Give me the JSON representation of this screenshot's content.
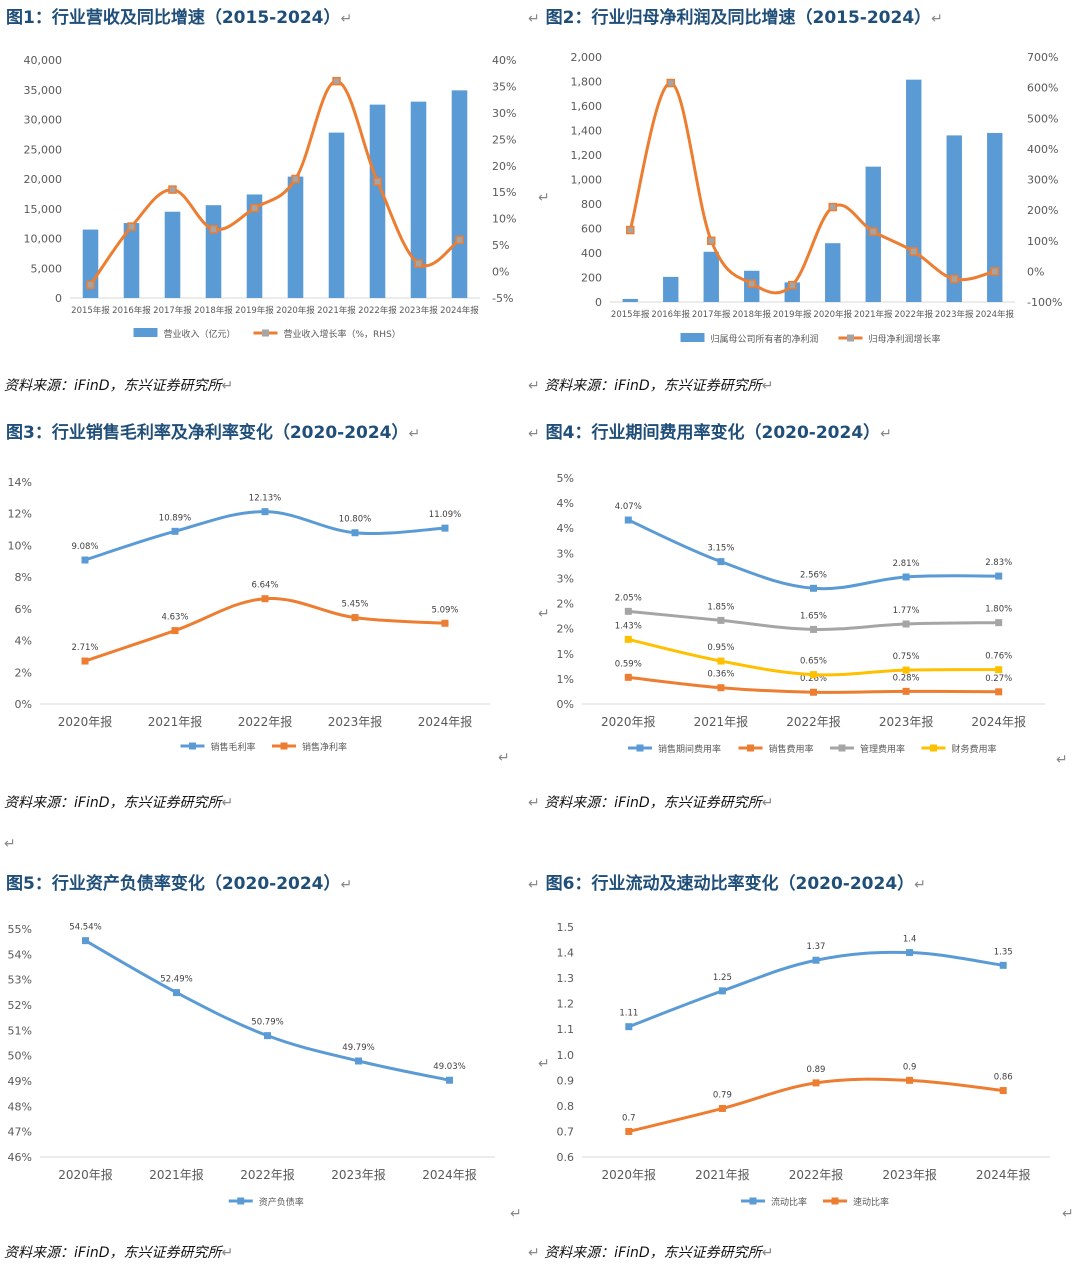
{
  "figures": [
    {
      "title": "图1：行业营收及同比增速（2015-2024）",
      "source": "资料来源：iFinD，东兴证券研究所"
    },
    {
      "title": "图2：行业归母净利润及同比增速（2015-2024）",
      "source": "资料来源：iFinD，东兴证券研究所"
    },
    {
      "title": "图3：行业销售毛利率及净利率变化（2020-2024）",
      "source": "资料来源：iFinD，东兴证券研究所"
    },
    {
      "title": "图4：行业期间费用率变化（2020-2024）",
      "source": "资料来源：iFinD，东兴证券研究所"
    },
    {
      "title": "图5：行业资产负债率变化（2020-2024）",
      "source": "资料来源：iFinD，东兴证券研究所"
    },
    {
      "title": "图6：行业流动及速动比率变化（2020-2024）",
      "source": "资料来源：iFinD，东兴证券研究所"
    }
  ],
  "return_mark": "↵",
  "chart_data": [
    {
      "type": "bar",
      "categories": [
        "2015年报",
        "2016年报",
        "2017年报",
        "2018年报",
        "2019年报",
        "2020年报",
        "2021年报",
        "2022年报",
        "2023年报",
        "2024年报"
      ],
      "series": [
        {
          "name": "营业收入（亿元）",
          "type": "bar",
          "axis": "left",
          "color": "#5b9bd5",
          "values": [
            11500,
            12600,
            14500,
            15600,
            17400,
            20400,
            27800,
            32500,
            33000,
            34900
          ]
        },
        {
          "name": "营业收入增长率（%，RHS）",
          "type": "line",
          "axis": "right",
          "color": "#ed7d31",
          "values": [
            -2.5,
            8.5,
            15.5,
            8.0,
            12.0,
            17.5,
            36.0,
            17.0,
            1.5,
            6.0
          ]
        }
      ],
      "ylim": [
        0,
        40000
      ],
      "yticks": [
        "0",
        "5,000",
        "10,000",
        "15,000",
        "20,000",
        "25,000",
        "30,000",
        "35,000",
        "40,000"
      ],
      "y2lim": [
        -5,
        40
      ],
      "y2ticks": [
        "-5%",
        "0%",
        "5%",
        "10%",
        "15%",
        "20%",
        "25%",
        "30%",
        "35%",
        "40%"
      ],
      "legend": "bottom",
      "grid": false
    },
    {
      "type": "bar",
      "categories": [
        "2015年报",
        "2016年报",
        "2017年报",
        "2018年报",
        "2019年报",
        "2020年报",
        "2021年报",
        "2022年报",
        "2023年报",
        "2024年报"
      ],
      "series": [
        {
          "name": "归属母公司所有者的净利润",
          "type": "bar",
          "axis": "left",
          "color": "#5b9bd5",
          "values": [
            25,
            205,
            410,
            255,
            160,
            480,
            1105,
            1815,
            1360,
            1380
          ]
        },
        {
          "name": "归母净利润增长率",
          "type": "line",
          "axis": "right",
          "color": "#ed7d31",
          "values": [
            135,
            615,
            100,
            -40,
            -45,
            210,
            130,
            65,
            -25,
            0
          ]
        }
      ],
      "ylim": [
        0,
        2000
      ],
      "yticks": [
        "0",
        "200",
        "400",
        "600",
        "800",
        "1,000",
        "1,200",
        "1,400",
        "1,600",
        "1,800",
        "2,000"
      ],
      "y2lim": [
        -100,
        700
      ],
      "y2ticks": [
        "-100%",
        "0%",
        "100%",
        "200%",
        "300%",
        "400%",
        "500%",
        "600%",
        "700%"
      ],
      "legend": "bottom",
      "grid": false
    },
    {
      "type": "line",
      "categories": [
        "2020年报",
        "2021年报",
        "2022年报",
        "2023年报",
        "2024年报"
      ],
      "series": [
        {
          "name": "销售毛利率",
          "color": "#5b9bd5",
          "values": [
            9.08,
            10.89,
            12.13,
            10.8,
            11.09
          ],
          "labels": [
            "9.08%",
            "10.89%",
            "12.13%",
            "10.80%",
            "11.09%"
          ]
        },
        {
          "name": "销售净利率",
          "color": "#ed7d31",
          "values": [
            2.71,
            4.63,
            6.64,
            5.45,
            5.09
          ],
          "labels": [
            "2.71%",
            "4.63%",
            "6.64%",
            "5.45%",
            "5.09%"
          ]
        }
      ],
      "ylim": [
        0,
        14
      ],
      "yticks": [
        "0%",
        "2%",
        "4%",
        "6%",
        "8%",
        "10%",
        "12%",
        "14%"
      ],
      "legend": "bottom",
      "grid": false
    },
    {
      "type": "line",
      "categories": [
        "2020年报",
        "2021年报",
        "2022年报",
        "2023年报",
        "2024年报"
      ],
      "series": [
        {
          "name": "销售期间费用率",
          "color": "#5b9bd5",
          "values": [
            4.07,
            3.15,
            2.56,
            2.81,
            2.83
          ],
          "labels": [
            "4.07%",
            "3.15%",
            "2.56%",
            "2.81%",
            "2.83%"
          ]
        },
        {
          "name": "销售费用率",
          "color": "#ed7d31",
          "values": [
            0.59,
            0.36,
            0.26,
            0.28,
            0.27
          ],
          "labels": [
            "0.59%",
            "0.36%",
            "0.26%",
            "0.28%",
            "0.27%"
          ]
        },
        {
          "name": "管理费用率",
          "color": "#a5a5a5",
          "values": [
            2.05,
            1.85,
            1.65,
            1.77,
            1.8
          ],
          "labels": [
            "2.05%",
            "1.85%",
            "1.65%",
            "1.77%",
            "1.80%"
          ]
        },
        {
          "name": "财务费用率",
          "color": "#ffc000",
          "values": [
            1.43,
            0.95,
            0.65,
            0.75,
            0.76
          ],
          "labels": [
            "1.43%",
            "0.95%",
            "0.65%",
            "0.75%",
            "0.76%"
          ]
        }
      ],
      "ylim": [
        0,
        5
      ],
      "yticks": [
        "0%",
        "1%",
        "1%",
        "2%",
        "2%",
        "3%",
        "3%",
        "4%",
        "4%",
        "5%"
      ],
      "legend": "bottom",
      "grid": false
    },
    {
      "type": "line",
      "categories": [
        "2020年报",
        "2021年报",
        "2022年报",
        "2023年报",
        "2024年报"
      ],
      "series": [
        {
          "name": "资产负债率",
          "color": "#5b9bd5",
          "values": [
            54.54,
            52.49,
            50.79,
            49.79,
            49.03
          ],
          "labels": [
            "54.54%",
            "52.49%",
            "50.79%",
            "49.79%",
            "49.03%"
          ]
        }
      ],
      "ylim": [
        46,
        55
      ],
      "yticks": [
        "46%",
        "47%",
        "48%",
        "49%",
        "50%",
        "51%",
        "52%",
        "53%",
        "54%",
        "55%"
      ],
      "legend": "bottom",
      "grid": false
    },
    {
      "type": "line",
      "categories": [
        "2020年报",
        "2021年报",
        "2022年报",
        "2023年报",
        "2024年报"
      ],
      "series": [
        {
          "name": "流动比率",
          "color": "#5b9bd5",
          "values": [
            1.11,
            1.25,
            1.37,
            1.4,
            1.35
          ],
          "labels": [
            "1.11",
            "1.25",
            "1.37",
            "1.4",
            "1.35"
          ]
        },
        {
          "name": "速动比率",
          "color": "#ed7d31",
          "values": [
            0.7,
            0.79,
            0.89,
            0.9,
            0.86
          ],
          "labels": [
            "0.7",
            "0.79",
            "0.89",
            "0.9",
            "0.86"
          ]
        }
      ],
      "ylim": [
        0.6,
        1.5
      ],
      "yticks": [
        "0.6",
        "0.7",
        "0.8",
        "0.9",
        "1.0",
        "1.1",
        "1.2",
        "1.3",
        "1.4",
        "1.5"
      ],
      "legend": "bottom",
      "grid": false
    }
  ]
}
